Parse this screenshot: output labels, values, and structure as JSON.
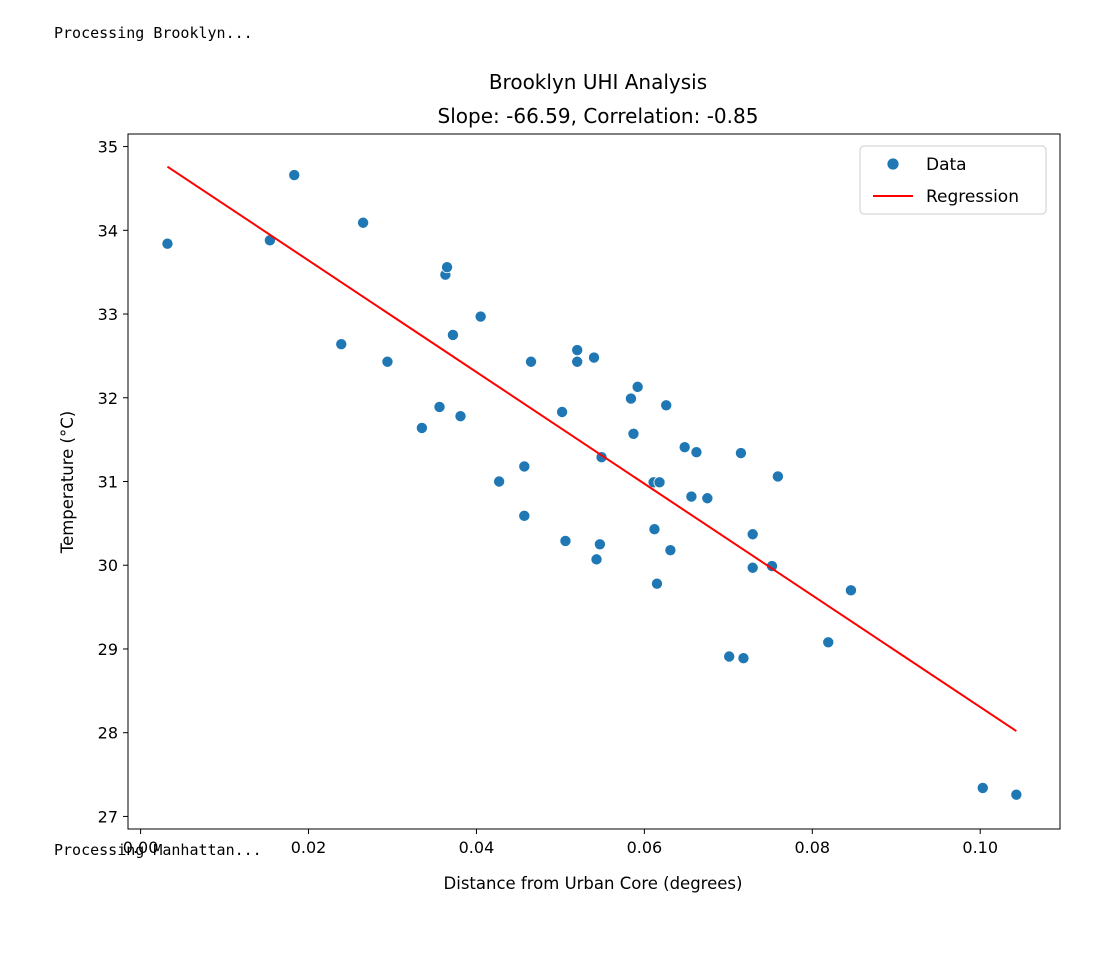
{
  "log": {
    "before": "Processing Brooklyn...",
    "after": "Processing Manhattan..."
  },
  "chart_data": {
    "type": "scatter",
    "title": "Brooklyn UHI Analysis",
    "subtitle": "Slope: -66.59, Correlation: -0.85",
    "xlabel": "Distance from Urban Core (degrees)",
    "ylabel": "Temperature (°C)",
    "xlim": [
      -0.0015,
      0.1095
    ],
    "ylim": [
      26.85,
      35.15
    ],
    "xticks": [
      0.0,
      0.02,
      0.04,
      0.06,
      0.08,
      0.1
    ],
    "xtick_labels": [
      "0.00",
      "0.02",
      "0.04",
      "0.06",
      "0.08",
      "0.10"
    ],
    "yticks": [
      27,
      28,
      29,
      30,
      31,
      32,
      33,
      34,
      35
    ],
    "ytick_labels": [
      "27",
      "28",
      "29",
      "30",
      "31",
      "32",
      "33",
      "34",
      "35"
    ],
    "grid": false,
    "legend": {
      "position": "top-right",
      "entries": [
        "Data",
        "Regression"
      ]
    },
    "series": [
      {
        "name": "Data",
        "kind": "scatter",
        "color": "#1f77b4",
        "points": [
          [
            0.0032,
            33.84
          ],
          [
            0.0154,
            33.88
          ],
          [
            0.0183,
            34.66
          ],
          [
            0.0239,
            32.64
          ],
          [
            0.0265,
            34.09
          ],
          [
            0.0294,
            32.43
          ],
          [
            0.0335,
            31.64
          ],
          [
            0.0356,
            31.89
          ],
          [
            0.0363,
            33.47
          ],
          [
            0.0365,
            33.56
          ],
          [
            0.0372,
            32.75
          ],
          [
            0.0381,
            31.78
          ],
          [
            0.0405,
            32.97
          ],
          [
            0.0427,
            31.0
          ],
          [
            0.0457,
            31.18
          ],
          [
            0.0457,
            30.59
          ],
          [
            0.0465,
            32.43
          ],
          [
            0.0502,
            31.83
          ],
          [
            0.0506,
            30.29
          ],
          [
            0.052,
            32.57
          ],
          [
            0.052,
            32.43
          ],
          [
            0.054,
            32.48
          ],
          [
            0.0543,
            30.07
          ],
          [
            0.0547,
            30.25
          ],
          [
            0.0549,
            31.29
          ],
          [
            0.0584,
            31.99
          ],
          [
            0.0587,
            31.57
          ],
          [
            0.0592,
            32.13
          ],
          [
            0.0611,
            30.99
          ],
          [
            0.0612,
            30.43
          ],
          [
            0.0615,
            29.78
          ],
          [
            0.0618,
            30.99
          ],
          [
            0.0626,
            31.91
          ],
          [
            0.0631,
            30.18
          ],
          [
            0.0648,
            31.41
          ],
          [
            0.0656,
            30.82
          ],
          [
            0.0662,
            31.35
          ],
          [
            0.0675,
            30.8
          ],
          [
            0.0701,
            28.91
          ],
          [
            0.0715,
            31.34
          ],
          [
            0.0718,
            28.89
          ],
          [
            0.0729,
            30.37
          ],
          [
            0.0729,
            29.97
          ],
          [
            0.0752,
            29.99
          ],
          [
            0.0759,
            31.06
          ],
          [
            0.0819,
            29.08
          ],
          [
            0.0846,
            29.7
          ],
          [
            0.1003,
            27.34
          ],
          [
            0.1043,
            27.26
          ]
        ]
      },
      {
        "name": "Regression",
        "kind": "line",
        "color": "#ff0000",
        "points": [
          [
            0.0032,
            34.76
          ],
          [
            0.1043,
            28.02
          ]
        ]
      }
    ]
  }
}
